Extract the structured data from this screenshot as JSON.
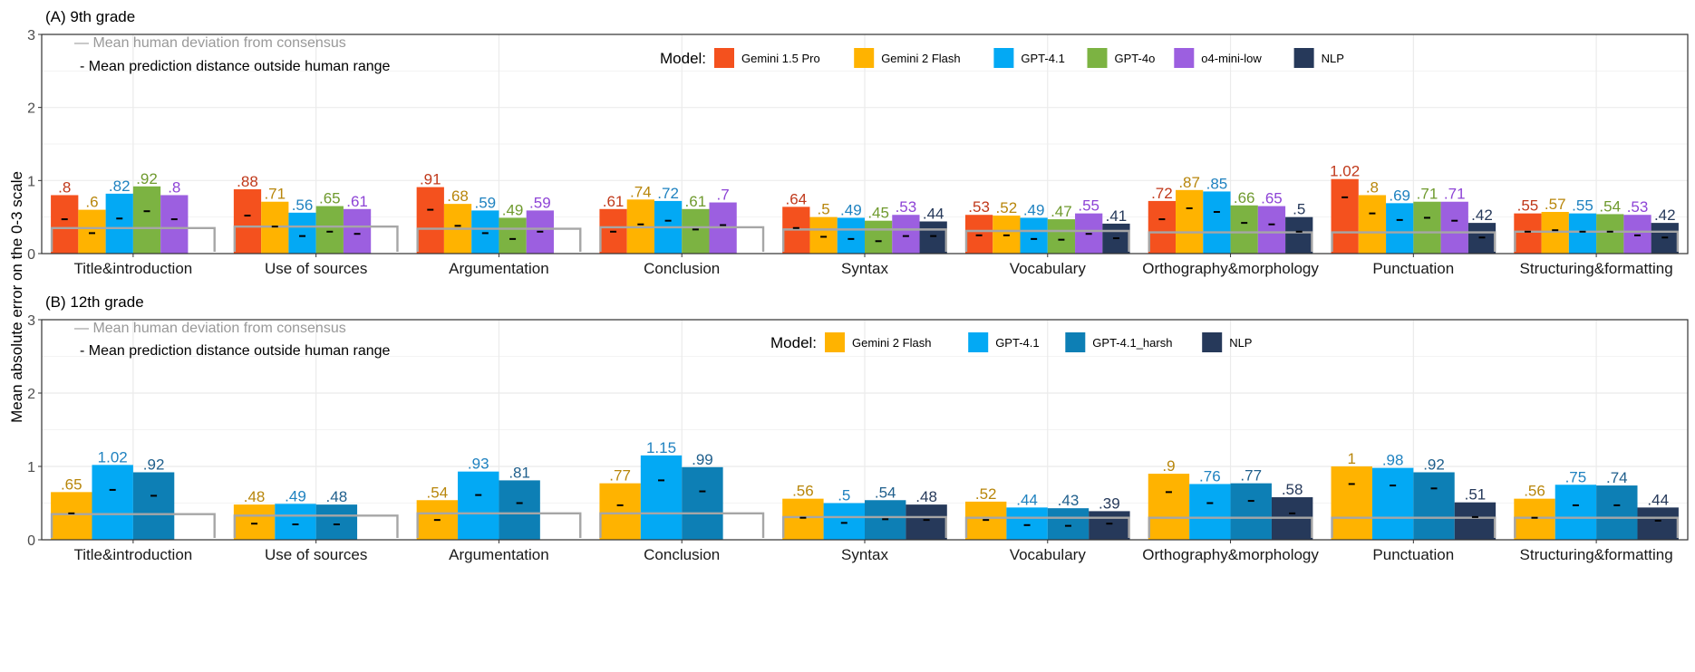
{
  "y_axis_label": "Mean absolute error on the 0-3 scale",
  "legend_title": "Model:",
  "annotation_human": "— Mean human deviation from consensus",
  "annotation_prediction": "- Mean prediction distance outside human range",
  "colors": {
    "Gemini 1.5 Pro": "#F4511E",
    "Gemini 2 Flash": "#FFB300",
    "GPT-4.1": "#03A9F4",
    "GPT-4o": "#7CB342",
    "o4-mini-low": "#9C5FE0",
    "NLP": "#26395A",
    "GPT-4.1_harsh": "#0D7FB5"
  },
  "label_colors": {
    "Gemini 1.5 Pro": "#C0391B",
    "Gemini 2 Flash": "#B8860B",
    "GPT-4.1": "#1F82C0",
    "GPT-4o": "#6F9A2E",
    "o4-mini-low": "#8E44D6",
    "NLP": "#26395A",
    "GPT-4.1_harsh": "#1F5F8C"
  },
  "chart_data": [
    {
      "type": "bar",
      "title": "(A) 9th grade",
      "ylabel": "Mean absolute error on the 0-3 scale",
      "ylim": [
        0,
        3
      ],
      "yticks": [
        0,
        1,
        2,
        3
      ],
      "grid": true,
      "legend_position": "top-right",
      "categories": [
        "Title&introduction",
        "Use of sources",
        "Argumentation",
        "Conclusion",
        "Syntax",
        "Vocabulary",
        "Orthography&morphology",
        "Punctuation",
        "Structuring&formatting"
      ],
      "series": [
        {
          "name": "Gemini 1.5 Pro",
          "values": [
            0.8,
            0.88,
            0.91,
            0.61,
            0.64,
            0.53,
            0.72,
            1.02,
            0.55
          ],
          "labels": [
            ".8",
            ".88",
            ".91",
            ".61",
            ".64",
            ".53",
            ".72",
            "1.02",
            ".55"
          ],
          "outside_range": [
            0.47,
            0.52,
            0.6,
            0.3,
            0.35,
            0.25,
            0.47,
            0.77,
            0.3
          ]
        },
        {
          "name": "Gemini 2 Flash",
          "values": [
            0.6,
            0.71,
            0.68,
            0.74,
            0.5,
            0.52,
            0.87,
            0.8,
            0.57
          ],
          "labels": [
            ".6",
            ".71",
            ".68",
            ".74",
            ".5",
            ".52",
            ".87",
            ".8",
            ".57"
          ],
          "outside_range": [
            0.28,
            0.37,
            0.38,
            0.4,
            0.23,
            0.25,
            0.62,
            0.55,
            0.32
          ]
        },
        {
          "name": "GPT-4.1",
          "values": [
            0.82,
            0.56,
            0.59,
            0.72,
            0.49,
            0.49,
            0.85,
            0.69,
            0.55
          ],
          "labels": [
            ".82",
            ".56",
            ".59",
            ".72",
            ".49",
            ".49",
            ".85",
            ".69",
            ".55"
          ],
          "outside_range": [
            0.48,
            0.24,
            0.28,
            0.45,
            0.2,
            0.2,
            0.57,
            0.46,
            0.3
          ]
        },
        {
          "name": "GPT-4o",
          "values": [
            0.92,
            0.65,
            0.49,
            0.61,
            0.45,
            0.47,
            0.66,
            0.71,
            0.54
          ],
          "labels": [
            ".92",
            ".65",
            ".49",
            ".61",
            ".45",
            ".47",
            ".66",
            ".71",
            ".54"
          ],
          "outside_range": [
            0.58,
            0.3,
            0.2,
            0.33,
            0.17,
            0.19,
            0.42,
            0.49,
            0.3
          ]
        },
        {
          "name": "o4-mini-low",
          "values": [
            0.8,
            0.61,
            0.59,
            0.7,
            0.53,
            0.55,
            0.65,
            0.71,
            0.53
          ],
          "labels": [
            ".8",
            ".61",
            ".59",
            ".7",
            ".53",
            ".55",
            ".65",
            ".71",
            ".53"
          ],
          "outside_range": [
            0.47,
            0.27,
            0.3,
            0.39,
            0.24,
            0.27,
            0.4,
            0.45,
            0.25
          ]
        },
        {
          "name": "NLP",
          "values": [
            null,
            null,
            null,
            null,
            0.44,
            0.41,
            0.5,
            0.42,
            0.42
          ],
          "labels": [
            "",
            "",
            "",
            "",
            ".44",
            ".41",
            ".5",
            ".42",
            ".42"
          ],
          "outside_range": [
            null,
            null,
            null,
            null,
            0.24,
            0.21,
            0.3,
            0.22,
            0.22
          ]
        }
      ],
      "human_deviation": [
        0.35,
        0.37,
        0.34,
        0.36,
        0.33,
        0.31,
        0.29,
        0.29,
        0.3
      ]
    },
    {
      "type": "bar",
      "title": "(B) 12th grade",
      "ylabel": "Mean absolute error on the 0-3 scale",
      "ylim": [
        0,
        3
      ],
      "yticks": [
        0,
        1,
        2,
        3
      ],
      "grid": true,
      "legend_position": "top-right",
      "categories": [
        "Title&introduction",
        "Use of sources",
        "Argumentation",
        "Conclusion",
        "Syntax",
        "Vocabulary",
        "Orthography&morphology",
        "Punctuation",
        "Structuring&formatting"
      ],
      "series": [
        {
          "name": "Gemini 2 Flash",
          "values": [
            0.65,
            0.48,
            0.54,
            0.77,
            0.56,
            0.52,
            0.9,
            1.0,
            0.56
          ],
          "labels": [
            ".65",
            ".48",
            ".54",
            ".77",
            ".56",
            ".52",
            ".9",
            "1",
            ".56"
          ],
          "outside_range": [
            0.36,
            0.22,
            0.27,
            0.47,
            0.3,
            0.27,
            0.65,
            0.76,
            0.3
          ]
        },
        {
          "name": "GPT-4.1",
          "values": [
            1.02,
            0.49,
            0.93,
            1.15,
            0.5,
            0.44,
            0.76,
            0.98,
            0.75
          ],
          "labels": [
            "1.02",
            ".49",
            ".93",
            "1.15",
            ".5",
            ".44",
            ".76",
            ".98",
            ".75"
          ],
          "outside_range": [
            0.68,
            0.21,
            0.61,
            0.81,
            0.23,
            0.2,
            0.5,
            0.74,
            0.47
          ]
        },
        {
          "name": "GPT-4.1_harsh",
          "values": [
            0.92,
            0.48,
            0.81,
            0.99,
            0.54,
            0.43,
            0.77,
            0.92,
            0.74
          ],
          "labels": [
            ".92",
            ".48",
            ".81",
            ".99",
            ".54",
            ".43",
            ".77",
            ".92",
            ".74"
          ],
          "outside_range": [
            0.6,
            0.21,
            0.5,
            0.66,
            0.28,
            0.19,
            0.53,
            0.7,
            0.47
          ]
        },
        {
          "name": "NLP",
          "values": [
            null,
            null,
            null,
            null,
            0.48,
            0.39,
            0.58,
            0.51,
            0.44
          ],
          "labels": [
            "",
            "",
            "",
            "",
            ".48",
            ".39",
            ".58",
            ".51",
            ".44"
          ],
          "outside_range": [
            null,
            null,
            null,
            null,
            0.27,
            0.22,
            0.36,
            0.31,
            0.26
          ]
        }
      ],
      "human_deviation": [
        0.35,
        0.33,
        0.36,
        0.36,
        0.31,
        0.3,
        0.3,
        0.3,
        0.3
      ]
    }
  ]
}
